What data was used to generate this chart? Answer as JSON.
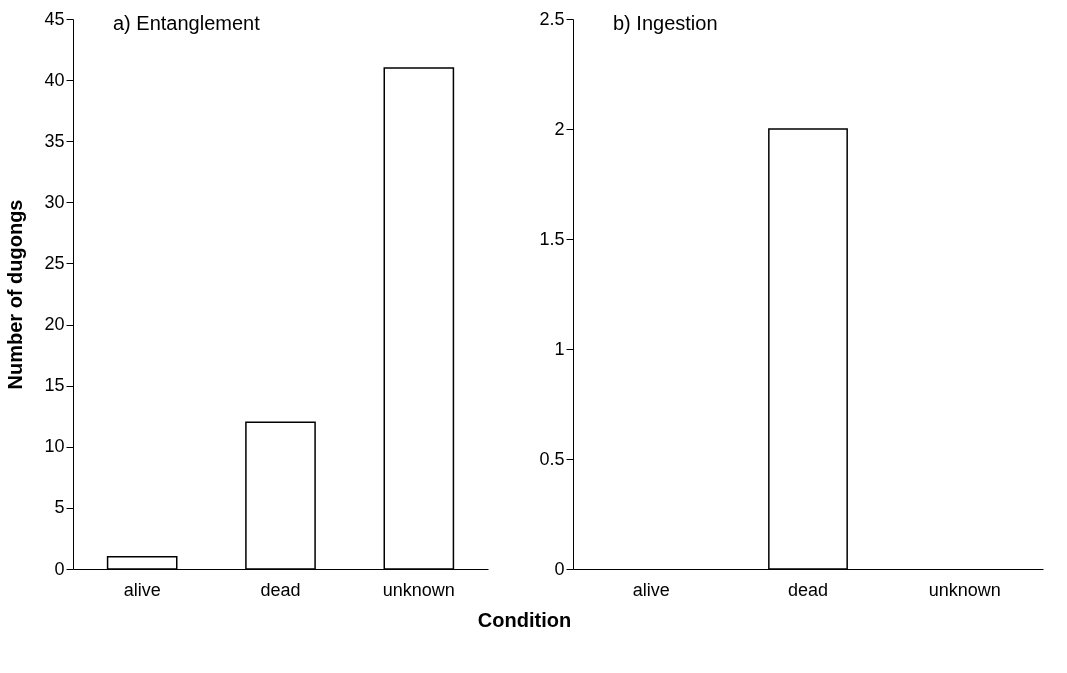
{
  "chart_data": [
    {
      "type": "bar",
      "title": "a) Entanglement",
      "categories": [
        "alive",
        "dead",
        "unknown"
      ],
      "values": [
        1,
        12,
        41
      ],
      "color": "#ffffff",
      "ylabel": "Number of dugongs",
      "xlabel": "Condition",
      "ylim": [
        0,
        45
      ],
      "yticks": [
        0,
        5,
        10,
        15,
        20,
        25,
        30,
        35,
        40,
        45
      ]
    },
    {
      "type": "bar",
      "title": "b) Ingestion",
      "categories": [
        "alive",
        "dead",
        "unknown"
      ],
      "values": [
        0,
        2,
        0
      ],
      "color": "#ffffff",
      "ylim": [
        0,
        2.5
      ],
      "yticks": [
        0,
        0.5,
        1,
        1.5,
        2,
        2.5
      ]
    }
  ]
}
